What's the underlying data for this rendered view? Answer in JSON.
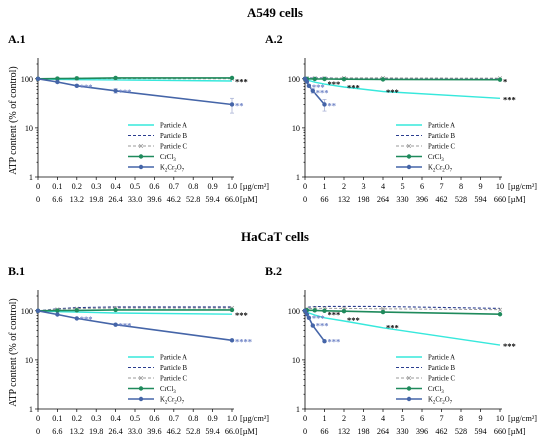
{
  "colors": {
    "particle_a": "#37e8dc",
    "particle_b": "#2a3d8f",
    "particle_c": "#9a9a9a",
    "crcl3": "#1f8a5c",
    "k2cr2o7": "#4565a8",
    "star_dark": "#000000",
    "star_blue": "#6a7fc4"
  },
  "sections": [
    {
      "title": "A549 cells"
    },
    {
      "title": "HaCaT cells"
    }
  ],
  "legend_labels": {
    "particle_a": "Particle A",
    "particle_b": "Particle B",
    "particle_c": "Particle C",
    "crcl3_main": "CrCl",
    "crcl3_sub": "3",
    "k2_main1": "K",
    "k2_sub1": "2",
    "k2_main2": "Cr",
    "k2_sub2": "2",
    "k2_main3": "O",
    "k2_sub3": "7"
  },
  "chart_data": [
    {
      "type": "line",
      "panel": "A.1",
      "ylabel": "ATP content (% of control)",
      "yscale": "log",
      "ylim": [
        1,
        200
      ],
      "y_ticks": [
        "1",
        "10",
        "100"
      ],
      "x_ticks_ug": [
        "0",
        "0.1",
        "0.2",
        "0.3",
        "0.4",
        "0.5",
        "0.6",
        "0.7",
        "0.8",
        "0.9",
        "1.0"
      ],
      "x_ticks_um": [
        "0",
        "6.6",
        "13.2",
        "19.8",
        "26.4",
        "33.0",
        "39.6",
        "46.2",
        "52.8",
        "59.4",
        "66.0"
      ],
      "x_unit_ug": "[µg/cm²]",
      "x_unit_um": "[µM]",
      "xlim": [
        0,
        1.0
      ],
      "series": [
        {
          "key": "particle_a",
          "name": "Particle A",
          "x": [
            0,
            0.1,
            0.2,
            0.4,
            1.0
          ],
          "y": [
            100,
            97,
            96,
            95,
            90
          ]
        },
        {
          "key": "particle_b",
          "name": "Particle B",
          "x": [
            0,
            0.1,
            0.2,
            0.4,
            1.0
          ],
          "y": [
            100,
            101,
            102,
            103,
            103
          ]
        },
        {
          "key": "particle_c",
          "name": "Particle C",
          "x": [
            0,
            0.1,
            0.2,
            0.4,
            1.0
          ],
          "y": [
            100,
            100,
            101,
            101,
            100
          ]
        },
        {
          "key": "crcl3",
          "name": "CrCl3",
          "x": [
            0,
            0.1,
            0.2,
            0.4,
            1.0
          ],
          "y": [
            100,
            101,
            102,
            104,
            104
          ]
        },
        {
          "key": "k2cr2o7",
          "name": "K2Cr2O7",
          "x": [
            0,
            0.1,
            0.2,
            0.4,
            1.0
          ],
          "y": [
            100,
            86,
            72,
            57,
            30
          ],
          "err": [
            0,
            4,
            4,
            6,
            10
          ]
        }
      ],
      "annotations": [
        {
          "text": "***",
          "x": 1.0,
          "y": 92,
          "color": "star_dark"
        },
        {
          "text": "***",
          "x": 0.2,
          "y": 72,
          "color": "star_blue"
        },
        {
          "text": "***",
          "x": 0.4,
          "y": 57,
          "color": "star_blue"
        },
        {
          "text": "**",
          "x": 1.0,
          "y": 30,
          "color": "star_blue"
        }
      ]
    },
    {
      "type": "line",
      "panel": "A.2",
      "yscale": "log",
      "ylim": [
        1,
        200
      ],
      "y_ticks": [
        "1",
        "10",
        "100"
      ],
      "x_ticks_ug": [
        "0",
        "1",
        "2",
        "3",
        "4",
        "5",
        "6",
        "7",
        "8",
        "9",
        "10"
      ],
      "x_ticks_um": [
        "0",
        "66",
        "132",
        "198",
        "264",
        "330",
        "396",
        "462",
        "528",
        "594",
        "660"
      ],
      "x_unit_ug": "[µg/cm²]",
      "x_unit_um": "[µM]",
      "xlim": [
        0,
        10
      ],
      "series": [
        {
          "key": "particle_a",
          "name": "Particle A",
          "x": [
            0,
            0.1,
            0.5,
            1,
            2,
            4,
            10
          ],
          "y": [
            100,
            95,
            85,
            78,
            68,
            55,
            40
          ]
        },
        {
          "key": "particle_b",
          "name": "Particle B",
          "x": [
            0,
            0.1,
            0.5,
            1,
            2,
            4,
            10
          ],
          "y": [
            100,
            103,
            104,
            104,
            103,
            102,
            100
          ]
        },
        {
          "key": "particle_c",
          "name": "Particle C",
          "x": [
            0,
            0.1,
            0.5,
            1,
            2,
            4,
            10
          ],
          "y": [
            100,
            102,
            103,
            103,
            104,
            104,
            103
          ]
        },
        {
          "key": "crcl3",
          "name": "CrCl3",
          "x": [
            0,
            0.1,
            0.5,
            1,
            2,
            4,
            10
          ],
          "y": [
            100,
            100,
            99,
            99,
            98,
            97,
            96
          ]
        },
        {
          "key": "k2cr2o7",
          "name": "K2Cr2O7",
          "x": [
            0,
            0.1,
            0.2,
            0.4,
            1
          ],
          "y": [
            100,
            88,
            72,
            57,
            30
          ],
          "err": [
            0,
            4,
            4,
            6,
            8
          ]
        }
      ],
      "annotations": [
        {
          "text": "***",
          "x": 1,
          "y": 82,
          "color": "star_dark"
        },
        {
          "text": "***",
          "x": 2,
          "y": 70,
          "color": "star_dark"
        },
        {
          "text": "***",
          "x": 4,
          "y": 57,
          "color": "star_dark"
        },
        {
          "text": "***",
          "x": 10,
          "y": 40,
          "color": "star_dark"
        },
        {
          "text": "*",
          "x": 10,
          "y": 92,
          "color": "star_dark"
        },
        {
          "text": "***",
          "x": 0.2,
          "y": 72,
          "color": "star_blue"
        },
        {
          "text": "***",
          "x": 0.4,
          "y": 55,
          "color": "star_blue"
        },
        {
          "text": "**",
          "x": 1,
          "y": 30,
          "color": "star_blue"
        }
      ]
    },
    {
      "type": "line",
      "panel": "B.1",
      "ylabel": "ATP content (% of control)",
      "yscale": "log",
      "ylim": [
        1,
        200
      ],
      "y_ticks": [
        "1",
        "10",
        "100"
      ],
      "x_ticks_ug": [
        "0",
        "0.1",
        "0.2",
        "0.3",
        "0.4",
        "0.5",
        "0.6",
        "0.7",
        "0.8",
        "0.9",
        "1.0"
      ],
      "x_ticks_um": [
        "0",
        "6.6",
        "13.2",
        "19.8",
        "26.4",
        "33.0",
        "39.6",
        "46.2",
        "52.8",
        "59.4",
        "66.0"
      ],
      "x_unit_ug": "[µg/cm²]",
      "x_unit_um": "[µM]",
      "xlim": [
        0,
        1.0
      ],
      "series": [
        {
          "key": "particle_a",
          "name": "Particle A",
          "x": [
            0,
            0.1,
            0.2,
            0.4,
            1.0
          ],
          "y": [
            100,
            96,
            94,
            90,
            85
          ]
        },
        {
          "key": "particle_b",
          "name": "Particle B",
          "x": [
            0,
            0.1,
            0.2,
            0.4,
            1.0
          ],
          "y": [
            100,
            110,
            116,
            120,
            120
          ]
        },
        {
          "key": "particle_c",
          "name": "Particle C",
          "x": [
            0,
            0.1,
            0.2,
            0.4,
            1.0
          ],
          "y": [
            100,
            107,
            111,
            114,
            114
          ]
        },
        {
          "key": "crcl3",
          "name": "CrCl3",
          "x": [
            0,
            0.1,
            0.2,
            0.4,
            1.0
          ],
          "y": [
            100,
            101,
            102,
            104,
            104
          ]
        },
        {
          "key": "k2cr2o7",
          "name": "K2Cr2O7",
          "x": [
            0,
            0.1,
            0.2,
            0.4,
            1.0
          ],
          "y": [
            100,
            84,
            70,
            52,
            25
          ]
        }
      ],
      "annotations": [
        {
          "text": "***",
          "x": 1.0,
          "y": 85,
          "color": "star_dark"
        },
        {
          "text": "***",
          "x": 0.2,
          "y": 72,
          "color": "star_blue"
        },
        {
          "text": "***",
          "x": 0.4,
          "y": 52,
          "color": "star_blue"
        },
        {
          "text": "****",
          "x": 1.0,
          "y": 25,
          "color": "star_blue"
        }
      ]
    },
    {
      "type": "line",
      "panel": "B.2",
      "yscale": "log",
      "ylim": [
        1,
        200
      ],
      "y_ticks": [
        "1",
        "10",
        "100"
      ],
      "x_ticks_ug": [
        "0",
        "1",
        "2",
        "3",
        "4",
        "5",
        "6",
        "7",
        "8",
        "9",
        "10"
      ],
      "x_ticks_um": [
        "0",
        "66",
        "132",
        "198",
        "264",
        "330",
        "396",
        "462",
        "528",
        "594",
        "660"
      ],
      "x_unit_ug": "[µg/cm²]",
      "x_unit_um": "[µM]",
      "xlim": [
        0,
        10
      ],
      "series": [
        {
          "key": "particle_a",
          "name": "Particle A",
          "x": [
            0,
            0.1,
            0.5,
            1,
            2,
            4,
            10
          ],
          "y": [
            100,
            93,
            82,
            72,
            62,
            45,
            20
          ]
        },
        {
          "key": "particle_b",
          "name": "Particle B",
          "x": [
            0,
            0.1,
            0.5,
            1,
            2,
            4,
            10
          ],
          "y": [
            100,
            118,
            122,
            122,
            123,
            122,
            112
          ]
        },
        {
          "key": "particle_c",
          "name": "Particle C",
          "x": [
            0,
            0.1,
            0.5,
            1,
            2,
            4,
            10
          ],
          "y": [
            100,
            110,
            113,
            112,
            112,
            110,
            105
          ]
        },
        {
          "key": "crcl3",
          "name": "CrCl3",
          "x": [
            0,
            0.1,
            0.5,
            1,
            2,
            4,
            10
          ],
          "y": [
            100,
            103,
            102,
            100,
            98,
            94,
            85
          ]
        },
        {
          "key": "k2cr2o7",
          "name": "K2Cr2O7",
          "x": [
            0,
            0.1,
            0.2,
            0.4,
            1
          ],
          "y": [
            100,
            85,
            72,
            50,
            24
          ]
        }
      ],
      "annotations": [
        {
          "text": "***",
          "x": 1,
          "y": 88,
          "color": "star_dark"
        },
        {
          "text": "***",
          "x": 2,
          "y": 68,
          "color": "star_dark"
        },
        {
          "text": "***",
          "x": 4,
          "y": 48,
          "color": "star_dark"
        },
        {
          "text": "***",
          "x": 10,
          "y": 20,
          "color": "star_dark"
        },
        {
          "text": "***",
          "x": 0.2,
          "y": 75,
          "color": "star_blue"
        },
        {
          "text": "***",
          "x": 0.4,
          "y": 52,
          "color": "star_blue"
        },
        {
          "text": "***",
          "x": 1,
          "y": 25,
          "color": "star_blue"
        }
      ]
    }
  ]
}
